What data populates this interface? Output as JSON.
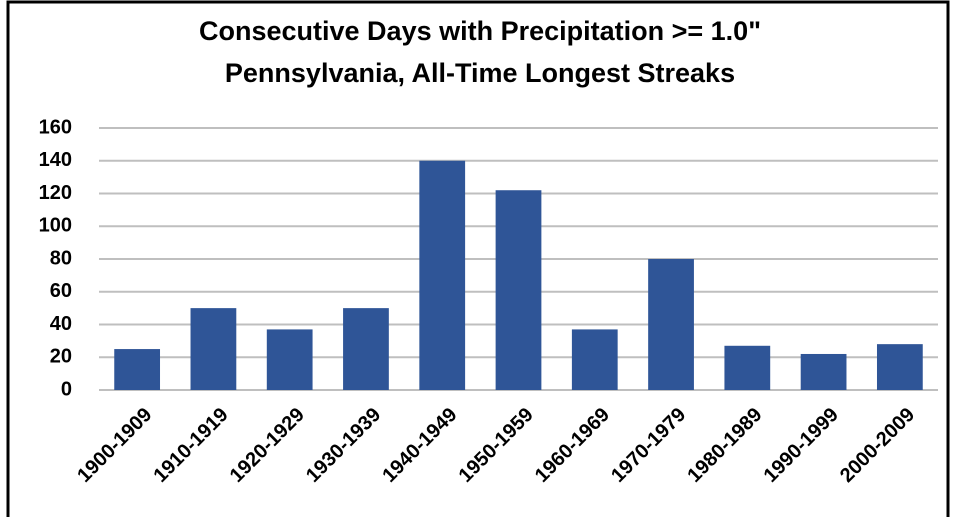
{
  "chart_data": {
    "type": "bar",
    "title": "Consecutive Days with Precipitation >= 1.0\"",
    "subtitle": "Pennsylvania, All-Time Longest Streaks",
    "categories": [
      "1900-1909",
      "1910-1919",
      "1920-1929",
      "1930-1939",
      "1940-1949",
      "1950-1959",
      "1960-1969",
      "1970-1979",
      "1980-1989",
      "1990-1999",
      "2000-2009"
    ],
    "values": [
      25,
      50,
      37,
      50,
      140,
      122,
      37,
      80,
      27,
      22,
      28
    ],
    "color": "#2f5597",
    "ylim": [
      0,
      160
    ],
    "yticks": [
      0,
      20,
      40,
      60,
      80,
      100,
      120,
      140,
      160
    ],
    "grid": true
  }
}
